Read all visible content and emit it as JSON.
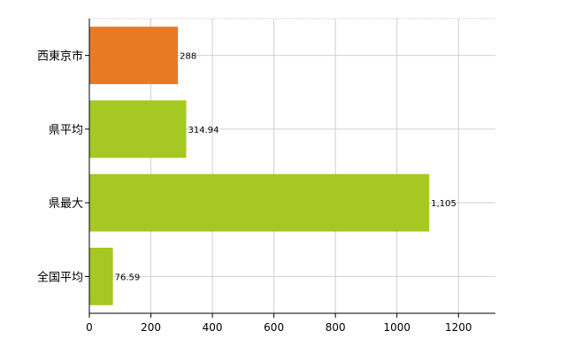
{
  "chart_data": {
    "type": "bar",
    "orientation": "horizontal",
    "categories": [
      "西東京市",
      "県平均",
      "県最大",
      "全国平均"
    ],
    "values": [
      288,
      314.94,
      1105,
      76.59
    ],
    "value_labels": [
      "288",
      "314.94",
      "1,105",
      "76.59"
    ],
    "colors": [
      "#e87a24",
      "#a5c823",
      "#a5c823",
      "#a5c823"
    ],
    "x_ticks": [
      0,
      200,
      400,
      600,
      800,
      1000,
      1200
    ],
    "xlim": [
      0,
      1320
    ],
    "grid": true,
    "title": "",
    "xlabel": "",
    "ylabel": ""
  }
}
